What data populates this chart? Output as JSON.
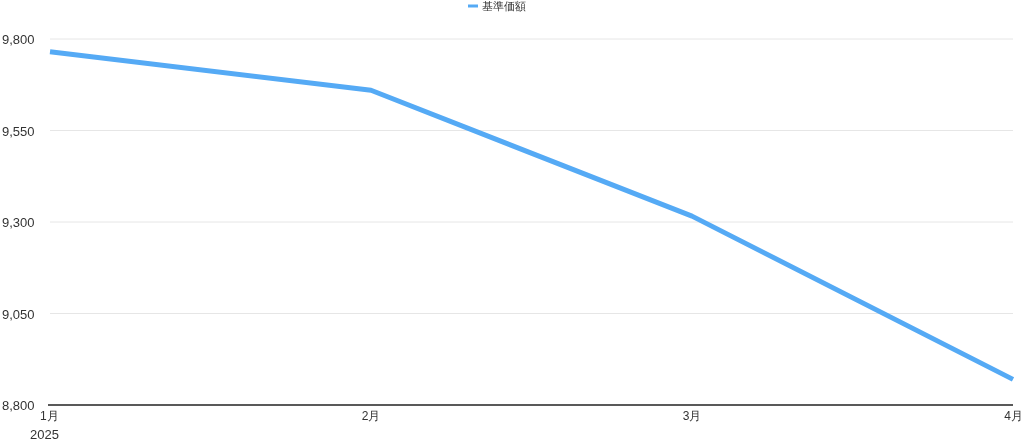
{
  "chart_data": {
    "type": "line",
    "categories": [
      "1月",
      "2月",
      "3月",
      "4月"
    ],
    "series": [
      {
        "name": "基準価額",
        "color": "#55aaf5",
        "values": [
          9765,
          9660,
          9316,
          8870
        ]
      }
    ],
    "ylim": [
      8800,
      9800
    ],
    "yticks": [
      {
        "value": 8800,
        "label": "8,800"
      },
      {
        "value": 9050,
        "label": "9,050"
      },
      {
        "value": 9300,
        "label": "9,300"
      },
      {
        "value": 9550,
        "label": "9,550"
      },
      {
        "value": 9800,
        "label": "9,800"
      }
    ],
    "grid": "y",
    "legend": "top",
    "marker": "none",
    "line_style": "solid",
    "annotations": [
      "2025"
    ]
  }
}
